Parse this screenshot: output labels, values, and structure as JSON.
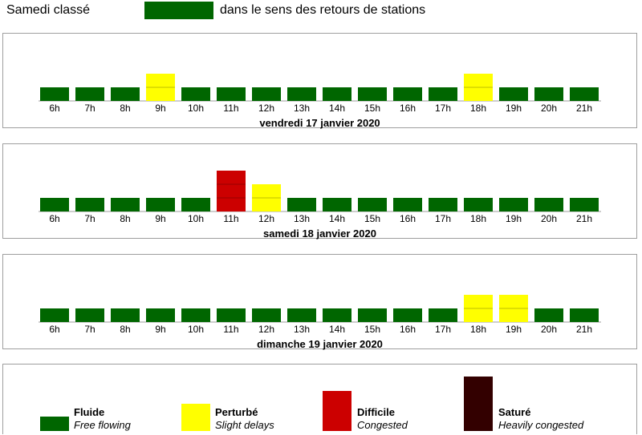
{
  "header": {
    "title": "Samedi classé",
    "caption": "dans le sens des retours de stations",
    "swatch_color": "#006600"
  },
  "colors": {
    "fluide": "#006600",
    "perturbe": "#ffff00",
    "difficile": "#cc0000",
    "sature": "#330000"
  },
  "chart_data": [
    {
      "type": "bar",
      "title": "vendredi 17 janvier 2020",
      "categories": [
        "6h",
        "7h",
        "8h",
        "9h",
        "10h",
        "11h",
        "12h",
        "13h",
        "14h",
        "15h",
        "16h",
        "17h",
        "18h",
        "19h",
        "20h",
        "21h"
      ],
      "values": [
        1,
        1,
        1,
        2,
        1,
        1,
        1,
        1,
        1,
        1,
        1,
        1,
        2,
        1,
        1,
        1
      ],
      "grid": false
    },
    {
      "type": "bar",
      "title": "samedi 18 janvier 2020",
      "categories": [
        "6h",
        "7h",
        "8h",
        "9h",
        "10h",
        "11h",
        "12h",
        "13h",
        "14h",
        "15h",
        "16h",
        "17h",
        "18h",
        "19h",
        "20h",
        "21h"
      ],
      "values": [
        1,
        1,
        1,
        1,
        1,
        3,
        2,
        1,
        1,
        1,
        1,
        1,
        1,
        1,
        1,
        1
      ],
      "grid": false
    },
    {
      "type": "bar",
      "title": "dimanche 19 janvier 2020",
      "categories": [
        "6h",
        "7h",
        "8h",
        "9h",
        "10h",
        "11h",
        "12h",
        "13h",
        "14h",
        "15h",
        "16h",
        "17h",
        "18h",
        "19h",
        "20h",
        "21h"
      ],
      "values": [
        1,
        1,
        1,
        1,
        1,
        1,
        1,
        1,
        1,
        1,
        1,
        1,
        2,
        2,
        1,
        1
      ],
      "grid": false
    }
  ],
  "legend": [
    {
      "level": 1,
      "title": "Fluide",
      "subtitle": "Free flowing",
      "color": "#006600"
    },
    {
      "level": 2,
      "title": "Perturbé",
      "subtitle": "Slight delays",
      "color": "#ffff00"
    },
    {
      "level": 3,
      "title": "Difficile",
      "subtitle": "Congested",
      "color": "#cc0000"
    },
    {
      "level": 4,
      "title": "Saturé",
      "subtitle": "Heavily congested",
      "color": "#330000"
    }
  ]
}
